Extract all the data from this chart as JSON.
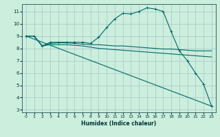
{
  "xlabel": "Humidex (Indice chaleur)",
  "bg_color": "#cceedd",
  "grid_color": "#aacccc",
  "line_color": "#006666",
  "xlim": [
    -0.5,
    23.5
  ],
  "ylim": [
    2.8,
    11.6
  ],
  "xticks": [
    0,
    1,
    2,
    3,
    4,
    5,
    6,
    7,
    8,
    9,
    10,
    11,
    12,
    13,
    14,
    15,
    16,
    17,
    18,
    19,
    20,
    21,
    22,
    23
  ],
  "yticks": [
    3,
    4,
    5,
    6,
    7,
    8,
    9,
    10,
    11
  ],
  "series": [
    {
      "x": [
        0,
        1,
        2,
        3,
        4,
        5,
        6,
        7,
        8,
        9,
        10,
        11,
        12,
        13,
        14,
        15,
        16,
        17,
        18,
        19,
        20,
        21,
        22,
        23
      ],
      "y": [
        9.0,
        9.0,
        8.2,
        8.5,
        8.5,
        8.5,
        8.5,
        8.5,
        8.4,
        8.9,
        9.7,
        10.4,
        10.85,
        10.8,
        11.0,
        11.3,
        11.2,
        11.0,
        9.35,
        7.8,
        7.0,
        6.0,
        5.1,
        3.3
      ],
      "marker": true
    },
    {
      "x": [
        0,
        1,
        2,
        3,
        4,
        5,
        6,
        7,
        8,
        9,
        10,
        11,
        12,
        13,
        14,
        15,
        16,
        17,
        18,
        19,
        20,
        21,
        22,
        23
      ],
      "y": [
        9.0,
        9.0,
        8.2,
        8.4,
        8.45,
        8.45,
        8.4,
        8.35,
        8.3,
        8.3,
        8.25,
        8.2,
        8.2,
        8.15,
        8.1,
        8.05,
        8.0,
        7.95,
        7.95,
        7.9,
        7.85,
        7.8,
        7.8,
        7.8
      ],
      "marker": false
    },
    {
      "x": [
        0,
        1,
        2,
        3,
        4,
        5,
        6,
        7,
        8,
        9,
        10,
        11,
        12,
        13,
        14,
        15,
        16,
        17,
        18,
        19,
        20,
        21,
        22,
        23
      ],
      "y": [
        9.0,
        9.0,
        8.2,
        8.3,
        8.3,
        8.3,
        8.25,
        8.2,
        8.1,
        8.0,
        7.95,
        7.9,
        7.85,
        7.8,
        7.75,
        7.7,
        7.65,
        7.6,
        7.55,
        7.5,
        7.45,
        7.4,
        7.35,
        7.3
      ],
      "marker": false
    },
    {
      "x": [
        0,
        23
      ],
      "y": [
        9.0,
        3.3
      ],
      "marker": false
    }
  ]
}
